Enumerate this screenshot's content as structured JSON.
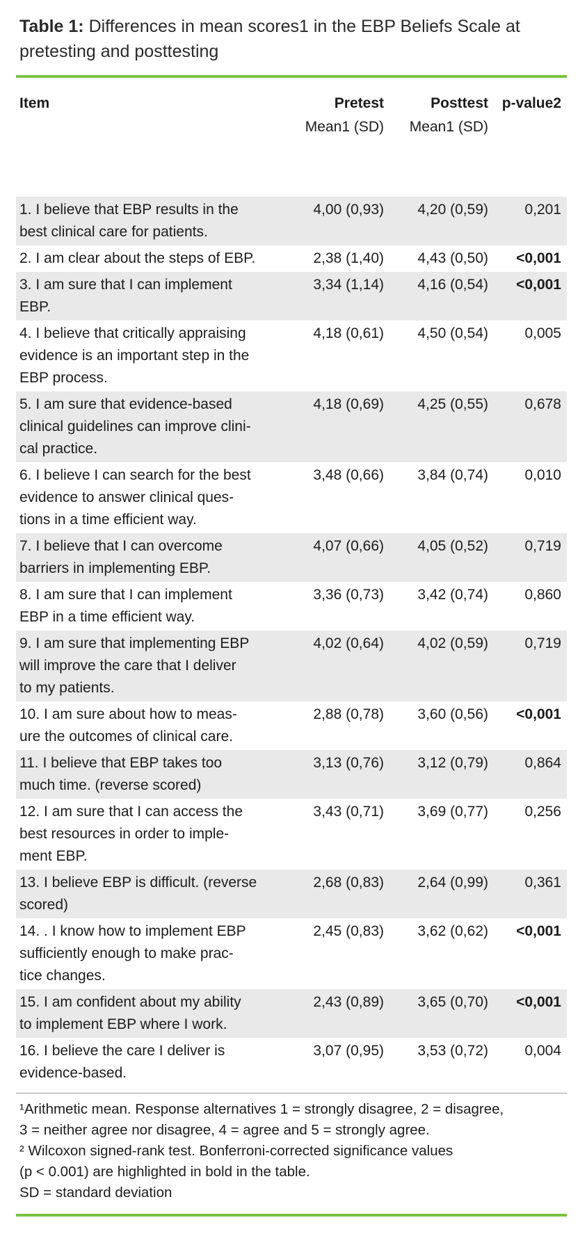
{
  "title": {
    "label": "Table 1:",
    "text": " Differences in mean scores1 in the EBP Beliefs Scale at pretesting and posttesting"
  },
  "table": {
    "headers": {
      "item": "Item",
      "pretest": "Pretest",
      "pretest_sub": "Mean1 (SD)",
      "posttest": "Posttest",
      "posttest_sub": "Mean1 (SD)",
      "p_value": "p-value2"
    },
    "rows": [
      {
        "item_lines": [
          "1. I believe that EBP results in the",
          "best clinical care for patients."
        ],
        "pretest": "4,00 (0,93)",
        "posttest": "4,20 (0,59)",
        "p": "0,201",
        "p_bold": false
      },
      {
        "item_lines": [
          "2. I am clear about the steps of EBP."
        ],
        "pretest": "2,38 (1,40)",
        "posttest": "4,43 (0,50)",
        "p": "<0,001",
        "p_bold": true
      },
      {
        "item_lines": [
          "3. I am sure that I can implement",
          "EBP."
        ],
        "pretest": "3,34 (1,14)",
        "posttest": "4,16 (0,54)",
        "p": "<0,001",
        "p_bold": true
      },
      {
        "item_lines": [
          "4. I believe that critically appraising",
          "evidence is an important step in the",
          "EBP process."
        ],
        "pretest": "4,18 (0,61)",
        "posttest": "4,50 (0,54)",
        "p": "0,005",
        "p_bold": false
      },
      {
        "item_lines": [
          "5. I am sure that evidence-based",
          "clinical guidelines can improve clini-",
          "cal practice."
        ],
        "pretest": "4,18 (0,69)",
        "posttest": "4,25 (0,55)",
        "p": "0,678",
        "p_bold": false
      },
      {
        "item_lines": [
          "6. I believe I can search for the best",
          "evidence to answer clinical ques-",
          "tions in a time efficient way."
        ],
        "pretest": "3,48 (0,66)",
        "posttest": "3,84 (0,74)",
        "p": "0,010",
        "p_bold": false
      },
      {
        "item_lines": [
          "7. I believe that I can overcome",
          "barriers in implementing EBP."
        ],
        "pretest": "4,07 (0,66)",
        "posttest": "4,05 (0,52)",
        "p": "0,719",
        "p_bold": false
      },
      {
        "item_lines": [
          "8. I am sure that I can implement",
          "EBP in a time efficient way."
        ],
        "pretest": "3,36 (0,73)",
        "posttest": "3,42 (0,74)",
        "p": "0,860",
        "p_bold": false
      },
      {
        "item_lines": [
          "9. I am sure that implementing EBP",
          "will improve the care that I deliver",
          "to my patients."
        ],
        "pretest": "4,02 (0,64)",
        "posttest": "4,02 (0,59)",
        "p": "0,719",
        "p_bold": false
      },
      {
        "item_lines": [
          "10. I am sure about how to meas-",
          "ure the outcomes of clinical care."
        ],
        "pretest": "2,88 (0,78)",
        "posttest": "3,60 (0,56)",
        "p": "<0,001",
        "p_bold": true
      },
      {
        "item_lines": [
          "11. I believe that EBP takes too",
          "much time. (reverse scored)"
        ],
        "pretest": "3,13 (0,76)",
        "posttest": "3,12 (0,79)",
        "p": "0,864",
        "p_bold": false
      },
      {
        "item_lines": [
          "12. I am sure that I can access the",
          "best resources in order to imple-",
          "ment EBP."
        ],
        "pretest": "3,43 (0,71)",
        "posttest": "3,69 (0,77)",
        "p": "0,256",
        "p_bold": false
      },
      {
        "item_lines": [
          "13. I believe EBP is difficult. (reverse",
          "scored)"
        ],
        "pretest": "2,68 (0,83)",
        "posttest": "2,64 (0,99)",
        "p": "0,361",
        "p_bold": false
      },
      {
        "item_lines": [
          "14. . I know how to implement EBP",
          "sufficiently enough to make prac-",
          "tice changes."
        ],
        "pretest": "2,45 (0,83)",
        "posttest": "3,62 (0,62)",
        "p": "<0,001",
        "p_bold": true
      },
      {
        "item_lines": [
          "15. I am confident about my ability",
          "to implement EBP where I work."
        ],
        "pretest": "2,43 (0,89)",
        "posttest": "3,65 (0,70)",
        "p": "<0,001",
        "p_bold": true
      },
      {
        "item_lines": [
          "16. I believe the care I deliver is",
          "evidence-based."
        ],
        "pretest": "3,07 (0,95)",
        "posttest": "3,53 (0,72)",
        "p": "0,004",
        "p_bold": false
      }
    ]
  },
  "footnotes": {
    "lines": [
      "¹Arithmetic mean. Response alternatives 1 = strongly disagree, 2 = disagree,",
      "3 = neither agree nor disagree, 4 = agree and 5 = strongly agree.",
      "² Wilcoxon signed-rank test. Bonferroni-corrected significance values",
      "(p < 0.001) are highlighted in bold in the table.",
      "SD = standard deviation"
    ]
  },
  "colors": {
    "accent_green": "#7bc142",
    "row_shade": "#e9e9e9"
  }
}
